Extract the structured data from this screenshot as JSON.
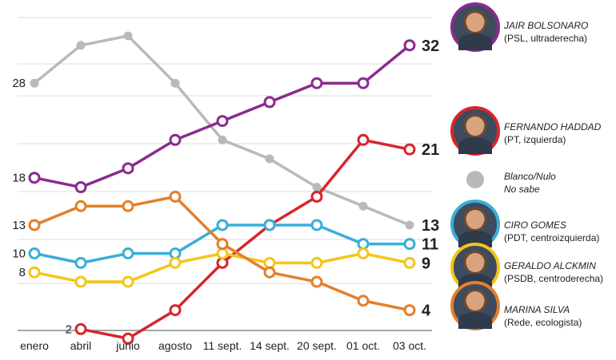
{
  "chart_data": {
    "type": "line",
    "categories": [
      "enero",
      "abril",
      "junio",
      "agosto",
      "11 sept.",
      "14 sept.",
      "20 sept.",
      "01 oct.",
      "03 oct."
    ],
    "ylim": [
      0,
      35
    ],
    "grid": true,
    "series": [
      {
        "name": "Blanco/Nulo No sabe",
        "color": "#b9b9b9",
        "values": [
          28,
          32,
          33,
          28,
          22,
          20,
          17,
          15,
          13
        ],
        "start_label": "28",
        "end_label": "13",
        "hollow": false
      },
      {
        "name": "JAIR BOLSONARO",
        "color": "#8b2a8f",
        "values": [
          18,
          17,
          19,
          22,
          24,
          26,
          28,
          28,
          32
        ],
        "start_label": "18",
        "end_label": "32",
        "hollow": true
      },
      {
        "name": "FERNANDO HADDAD",
        "color": "#d7262b",
        "values": [
          null,
          2,
          1,
          4,
          9,
          13,
          16,
          22,
          21
        ],
        "start_label": "2",
        "end_label": "21",
        "hollow": true
      },
      {
        "name": "CIRO GOMES",
        "color": "#3aaed8",
        "values": [
          10,
          9,
          10,
          10,
          13,
          13,
          13,
          11,
          11
        ],
        "start_label": "10",
        "end_label": "11",
        "hollow": true
      },
      {
        "name": "GERALDO ALCKMIN",
        "color": "#f5c518",
        "values": [
          8,
          7,
          7,
          9,
          10,
          9,
          9,
          10,
          9
        ],
        "start_label": "8",
        "end_label": "9",
        "hollow": true
      },
      {
        "name": "MARINA SILVA",
        "color": "#e47f2a",
        "values": [
          13,
          15,
          15,
          16,
          11,
          8,
          7,
          5,
          4
        ],
        "start_label": "13",
        "end_label": "4",
        "hollow": true
      }
    ]
  },
  "legend": {
    "bolsonaro": {
      "name": "JAIR BOLSONARO",
      "party": "(PSL, ultraderecha)",
      "color": "#8b2a8f"
    },
    "haddad": {
      "name": "FERNANDO HADDAD",
      "party": "(PT, izquierda)",
      "color": "#d7262b"
    },
    "blanco": {
      "line1": "Blanco/Nulo",
      "line2": "No sabe",
      "color": "#b9b9b9"
    },
    "ciro": {
      "name": "CIRO GOMES",
      "party": "(PDT, centroizquierda)",
      "color": "#3aaed8"
    },
    "alckmin": {
      "name": "GERALDO ALCKMIN",
      "party": "(PSDB, centroderecha)",
      "color": "#f5c518"
    },
    "marina": {
      "name": "MARINA SILVA",
      "party": "(Rede, ecologista)",
      "color": "#e47f2a"
    }
  }
}
